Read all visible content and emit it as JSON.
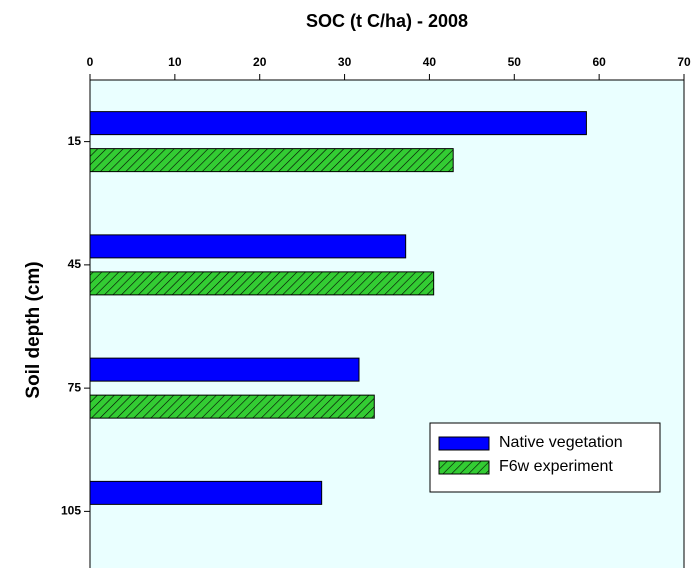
{
  "chart_data": {
    "type": "bar",
    "orientation": "horizontal",
    "xlabel": "SOC (t C/ha) - 2008",
    "ylabel": "Soil depth (cm)",
    "y": [
      15,
      45,
      75,
      105
    ],
    "series": [
      {
        "name": "Native vegetation",
        "color": "#0000ff",
        "values": [
          58.5,
          37.2,
          31.7,
          27.3
        ]
      },
      {
        "name": "F6w experiment",
        "color": "#33cc33",
        "hatch": true,
        "values": [
          42.8,
          40.5,
          33.5,
          null
        ]
      }
    ],
    "xlim": [
      0,
      70
    ],
    "xticks": [
      0,
      10,
      20,
      30,
      40,
      50,
      60,
      70
    ],
    "ylim": [
      0,
      120
    ],
    "yticks": [
      15,
      45,
      75,
      105
    ],
    "background": "#eaffff",
    "legend": "lower right"
  }
}
